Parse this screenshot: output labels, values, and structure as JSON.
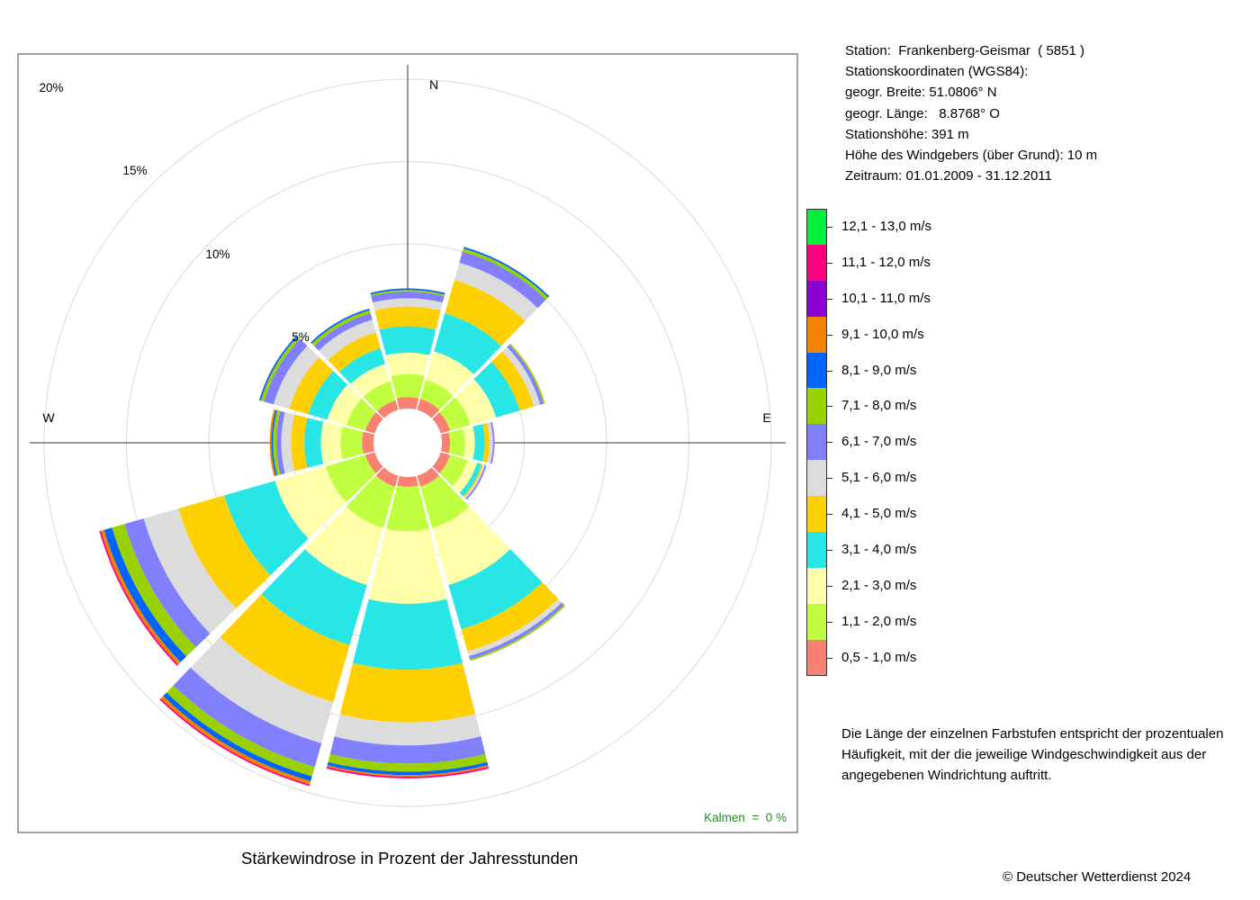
{
  "info": {
    "station": "Station:  Frankenberg-Geismar  ( 5851 )",
    "coords_title": "Stationskoordinaten (WGS84):",
    "lat": "geogr. Breite: 51.0806° N",
    "lon": "geogr. Länge:   8.8768° O",
    "elevation": "Stationshöhe: 391 m",
    "sensor_height": "Höhe des Windgebers (über Grund): 10 m",
    "period": "Zeitraum: 01.01.2009 - 31.12.2011"
  },
  "note": [
    "Die Länge der einzelnen Farbstufen entspricht der prozentualen",
    "Häufigkeit, mit der die jeweilige Windgeschwindigkeit aus der",
    "angegebenen Windrichtung auftritt."
  ],
  "caption": "Stärkewindrose in Prozent der Jahresstunden",
  "copyright": "© Deutscher Wetterdienst  2024",
  "chart_data": {
    "type": "windrose",
    "directions_deg": [
      0,
      30,
      60,
      90,
      120,
      150,
      180,
      210,
      240,
      270,
      300,
      330
    ],
    "compass_labels": [
      "N",
      "E",
      "W"
    ],
    "ring_labels": [
      "5%",
      "10%",
      "15%",
      "20%"
    ],
    "ring_values": [
      5,
      10,
      15,
      20
    ],
    "calm_label": "Kalmen  =  0 %",
    "speed_classes": [
      {
        "label": "0,5 - 1,0 m/s",
        "color": "#fa8072"
      },
      {
        "label": "1,1 - 2,0 m/s",
        "color": "#bfff3f"
      },
      {
        "label": "2,1 - 3,0 m/s",
        "color": "#ffffaa"
      },
      {
        "label": "3,1 - 4,0 m/s",
        "color": "#28e6e6"
      },
      {
        "label": "4,1 - 5,0 m/s",
        "color": "#ffd000"
      },
      {
        "label": "5,1 - 6,0 m/s",
        "color": "#dcdcdc"
      },
      {
        "label": "6,1 - 7,0 m/s",
        "color": "#8080ff"
      },
      {
        "label": "7,1 - 8,0 m/s",
        "color": "#99d200"
      },
      {
        "label": "8,1 - 9,0 m/s",
        "color": "#0064ff"
      },
      {
        "label": "9,1 - 10,0 m/s",
        "color": "#f58200"
      },
      {
        "label": "10,1 - 11,0 m/s",
        "color": "#8c00d2"
      },
      {
        "label": "11,1 - 12,0 m/s",
        "color": "#ff0080"
      },
      {
        "label": "12,1 - 13,0 m/s",
        "color": "#00f03c"
      }
    ],
    "frequencies_percent": [
      [
        0.7,
        1.4,
        1.3,
        1.6,
        1.2,
        0.5,
        0.4,
        0.1,
        0.1,
        0,
        0,
        0,
        0
      ],
      [
        0.7,
        1.2,
        1.8,
        2.4,
        2.1,
        1.1,
        0.7,
        0.2,
        0.1,
        0,
        0,
        0,
        0
      ],
      [
        0.6,
        1.3,
        1.6,
        1.5,
        0.9,
        0.4,
        0.2,
        0.1,
        0,
        0,
        0,
        0,
        0
      ],
      [
        0.5,
        0.9,
        0.6,
        0.6,
        0.3,
        0.2,
        0.1,
        0,
        0,
        0,
        0,
        0,
        0
      ],
      [
        0.6,
        1.1,
        0.6,
        0.3,
        0.1,
        0.1,
        0.1,
        0,
        0,
        0,
        0,
        0,
        0
      ],
      [
        0.7,
        2.6,
        3.6,
        2.8,
        1.4,
        0.3,
        0.2,
        0.1,
        0,
        0,
        0,
        0,
        0
      ],
      [
        0.6,
        2.7,
        4.4,
        4.0,
        3.2,
        1.4,
        1.1,
        0.5,
        0.2,
        0.1,
        0,
        0.1,
        0
      ],
      [
        0.7,
        2.6,
        3.6,
        3.8,
        3.6,
        2.6,
        1.5,
        0.6,
        0.3,
        0.2,
        0,
        0.1,
        0
      ],
      [
        0.6,
        2.5,
        3.2,
        3.2,
        2.9,
        2.2,
        1.2,
        0.8,
        0.5,
        0.2,
        0,
        0.1,
        0
      ],
      [
        0.7,
        1.3,
        1.2,
        1.0,
        0.8,
        0.6,
        0.3,
        0.2,
        0.1,
        0.1,
        0,
        0,
        0
      ],
      [
        0.6,
        1.2,
        1.2,
        1.2,
        1.2,
        1.0,
        0.6,
        0.2,
        0.1,
        0,
        0,
        0,
        0
      ],
      [
        0.6,
        1.2,
        1.1,
        1.0,
        1.0,
        0.8,
        0.4,
        0.2,
        0.1,
        0,
        0,
        0,
        0
      ]
    ]
  }
}
